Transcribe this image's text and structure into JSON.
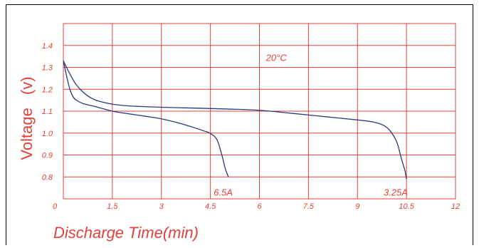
{
  "chart_data": {
    "type": "line",
    "title": "",
    "xlabel": "Discharge Time(min)",
    "ylabel": "Voltage",
    "ylabel_unit": "(v)",
    "xlim": [
      0,
      12
    ],
    "ylim": [
      0.7,
      1.5
    ],
    "x_ticks": [
      {
        "value": 0,
        "label": "0"
      },
      {
        "value": 1.5,
        "label": "1.5"
      },
      {
        "value": 3,
        "label": "3"
      },
      {
        "value": 4.5,
        "label": "4.5"
      },
      {
        "value": 6,
        "label": "6"
      },
      {
        "value": 7.5,
        "label": "7.5"
      },
      {
        "value": 9,
        "label": "9"
      },
      {
        "value": 10.5,
        "label": "10.5"
      },
      {
        "value": 12,
        "label": "12"
      }
    ],
    "y_ticks": [
      {
        "value": 0.8,
        "label": "0.8"
      },
      {
        "value": 0.9,
        "label": "0.9"
      },
      {
        "value": 1.0,
        "label": "1.0"
      },
      {
        "value": 1.1,
        "label": "1.1"
      },
      {
        "value": 1.2,
        "label": "1.2"
      },
      {
        "value": 1.3,
        "label": "1.3"
      },
      {
        "value": 1.4,
        "label": "1.4"
      }
    ],
    "grid": true,
    "annotation": "20°C",
    "series": [
      {
        "name": "6.5A",
        "color": "#2a3a7a",
        "points": [
          [
            0,
            1.33
          ],
          [
            0.1,
            1.26
          ],
          [
            0.2,
            1.2
          ],
          [
            0.3,
            1.165
          ],
          [
            0.4,
            1.15
          ],
          [
            0.6,
            1.135
          ],
          [
            1,
            1.12
          ],
          [
            1.5,
            1.1
          ],
          [
            2,
            1.088
          ],
          [
            2.5,
            1.077
          ],
          [
            3,
            1.065
          ],
          [
            3.5,
            1.047
          ],
          [
            4,
            1.025
          ],
          [
            4.3,
            1.01
          ],
          [
            4.5,
            0.998
          ],
          [
            4.7,
            0.97
          ],
          [
            4.85,
            0.9
          ],
          [
            4.95,
            0.84
          ],
          [
            5.05,
            0.8
          ]
        ]
      },
      {
        "name": "3.25A",
        "color": "#2a3a7a",
        "points": [
          [
            0,
            1.33
          ],
          [
            0.2,
            1.27
          ],
          [
            0.4,
            1.22
          ],
          [
            0.7,
            1.175
          ],
          [
            1,
            1.15
          ],
          [
            1.5,
            1.132
          ],
          [
            2,
            1.124
          ],
          [
            3,
            1.118
          ],
          [
            4,
            1.114
          ],
          [
            5,
            1.11
          ],
          [
            6,
            1.104
          ],
          [
            7,
            1.09
          ],
          [
            8,
            1.075
          ],
          [
            9,
            1.06
          ],
          [
            9.5,
            1.05
          ],
          [
            9.8,
            1.035
          ],
          [
            10,
            1.01
          ],
          [
            10.2,
            0.96
          ],
          [
            10.35,
            0.88
          ],
          [
            10.45,
            0.83
          ],
          [
            10.5,
            0.79
          ]
        ]
      }
    ],
    "series_label_positions": [
      {
        "name": "6.5A",
        "x": 4.6,
        "y": 0.76
      },
      {
        "name": "3.25A",
        "x": 9.8,
        "y": 0.76
      }
    ],
    "annotation_position": {
      "x": 6.2,
      "y": 1.33
    }
  }
}
